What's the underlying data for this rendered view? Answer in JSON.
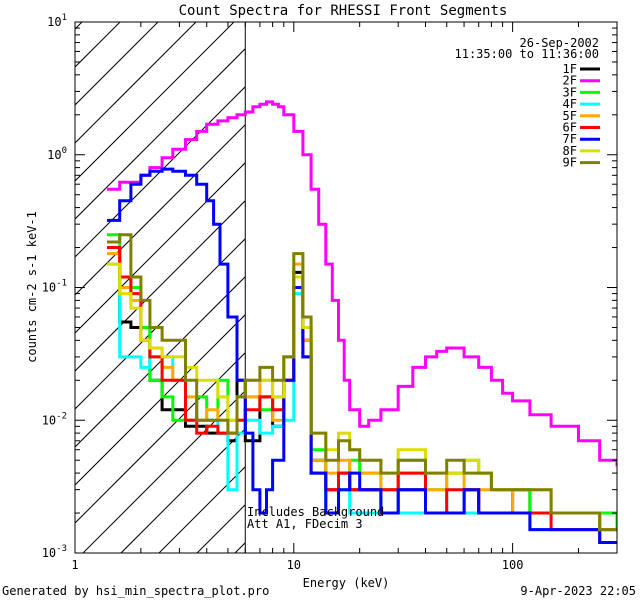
{
  "chart_data": {
    "type": "line",
    "title": "Count Spectra for RHESSI Front Segments",
    "xlabel": "Energy (keV)",
    "ylabel": "counts cm-2 s-1 keV-1",
    "x_scale": "log",
    "y_scale": "log",
    "xlim": [
      1,
      300
    ],
    "ylim": [
      0.001,
      10
    ],
    "x_tick_labels": [
      {
        "value": 1,
        "label": "1"
      },
      {
        "value": 10,
        "label": "10"
      },
      {
        "value": 100,
        "label": "100"
      }
    ],
    "y_tick_labels": [
      {
        "value": 10,
        "base": "10",
        "exp": "1"
      },
      {
        "value": 1,
        "base": "10",
        "exp": "0"
      },
      {
        "value": 0.1,
        "base": "10",
        "exp": "-1"
      },
      {
        "value": 0.01,
        "base": "10",
        "exp": "-2"
      },
      {
        "value": 0.001,
        "base": "10",
        "exp": "-3"
      }
    ],
    "date": "26-Sep-2002",
    "time_range": "11:35:00 to 11:36:00",
    "hatched_region_max_keV": 6,
    "annotations": [
      "Includes Background",
      "Att A1, FDecim 3"
    ],
    "series": [
      {
        "name": "1F",
        "color": "#000000",
        "x": [
          1.4,
          1.6,
          1.8,
          2.0,
          2.2,
          2.5,
          2.8,
          3.2,
          3.6,
          4.0,
          4.5,
          5.0,
          5.5,
          6,
          7,
          8,
          9,
          10,
          11,
          12,
          14,
          16,
          18,
          20,
          25,
          30,
          40,
          50,
          60,
          70,
          80,
          100,
          120,
          150,
          200,
          250,
          300
        ],
        "y": [
          0.2,
          0.055,
          0.05,
          0.05,
          0.02,
          0.012,
          0.012,
          0.009,
          0.009,
          0.008,
          0.008,
          0.007,
          0.02,
          0.007,
          0.015,
          0.009,
          0.02,
          0.13,
          0.04,
          0.005,
          0.003,
          0.004,
          0.003,
          0.003,
          0.002,
          0.003,
          0.002,
          0.002,
          0.003,
          0.002,
          0.002,
          0.003,
          0.002,
          0.002,
          0.002,
          0.0015,
          0.0015
        ]
      },
      {
        "name": "2F",
        "color": "#ff00ff",
        "x": [
          1.4,
          1.6,
          1.8,
          2.0,
          2.2,
          2.5,
          2.8,
          3.2,
          3.6,
          4.0,
          4.5,
          5.0,
          5.5,
          6,
          6.5,
          7,
          7.5,
          8,
          8.5,
          9,
          10,
          11,
          12,
          13,
          14,
          15,
          16,
          17,
          18,
          20,
          22,
          25,
          30,
          35,
          40,
          45,
          50,
          60,
          70,
          80,
          90,
          100,
          120,
          150,
          200,
          250,
          300
        ],
        "y": [
          0.55,
          0.62,
          0.62,
          0.7,
          0.8,
          0.95,
          1.1,
          1.3,
          1.5,
          1.7,
          1.8,
          1.9,
          2.0,
          2.1,
          2.3,
          2.4,
          2.5,
          2.4,
          2.3,
          2.0,
          1.5,
          1.0,
          0.55,
          0.3,
          0.15,
          0.08,
          0.04,
          0.02,
          0.012,
          0.009,
          0.01,
          0.012,
          0.018,
          0.025,
          0.03,
          0.033,
          0.035,
          0.03,
          0.025,
          0.02,
          0.016,
          0.014,
          0.011,
          0.009,
          0.007,
          0.005,
          0.0045
        ]
      },
      {
        "name": "3F",
        "color": "#00ff00",
        "x": [
          1.4,
          1.6,
          1.8,
          2.0,
          2.2,
          2.5,
          2.8,
          3.2,
          3.6,
          4.0,
          4.5,
          5.0,
          5.5,
          6,
          7,
          8,
          9,
          10,
          11,
          12,
          14,
          16,
          18,
          20,
          25,
          30,
          40,
          50,
          60,
          70,
          80,
          100,
          120,
          150,
          200,
          250,
          300
        ],
        "y": [
          0.25,
          0.12,
          0.1,
          0.05,
          0.02,
          0.015,
          0.01,
          0.01,
          0.015,
          0.01,
          0.02,
          0.01,
          0.015,
          0.015,
          0.012,
          0.015,
          0.03,
          0.1,
          0.05,
          0.006,
          0.002,
          0.003,
          0.005,
          0.004,
          0.003,
          0.005,
          0.003,
          0.004,
          0.005,
          0.004,
          0.003,
          0.003,
          0.002,
          0.002,
          0.002,
          0.002,
          0.0015
        ]
      },
      {
        "name": "4F",
        "color": "#00ffff",
        "x": [
          1.4,
          1.6,
          1.8,
          2.0,
          2.2,
          2.5,
          2.8,
          3.2,
          3.6,
          4.0,
          4.5,
          5.0,
          5.5,
          6,
          7,
          8,
          9,
          10,
          11,
          12,
          14,
          16,
          18,
          20,
          25,
          30,
          40,
          50,
          60,
          70,
          80,
          100,
          120,
          150,
          200,
          250,
          300
        ],
        "y": [
          0.15,
          0.03,
          0.03,
          0.025,
          0.03,
          0.03,
          0.02,
          0.015,
          0.01,
          0.01,
          0.008,
          0.003,
          0.008,
          0.01,
          0.008,
          0.009,
          0.01,
          0.09,
          0.03,
          0.004,
          0.002,
          0.003,
          0.002,
          0.002,
          0.003,
          0.002,
          0.002,
          0.003,
          0.002,
          0.002,
          0.002,
          0.002,
          0.0015,
          0.0015,
          0.0015,
          0.0012,
          0.0012
        ]
      },
      {
        "name": "5F",
        "color": "#ffaa00",
        "x": [
          1.4,
          1.6,
          1.8,
          2.0,
          2.2,
          2.5,
          2.8,
          3.2,
          3.6,
          4.0,
          4.5,
          5.0,
          5.5,
          6,
          7,
          8,
          9,
          10,
          11,
          12,
          14,
          16,
          18,
          20,
          25,
          30,
          40,
          50,
          60,
          70,
          80,
          100,
          120,
          150,
          200,
          250,
          300
        ],
        "y": [
          0.18,
          0.1,
          0.08,
          0.04,
          0.035,
          0.025,
          0.02,
          0.015,
          0.01,
          0.012,
          0.01,
          0.008,
          0.01,
          0.015,
          0.02,
          0.01,
          0.02,
          0.15,
          0.04,
          0.005,
          0.004,
          0.005,
          0.004,
          0.004,
          0.003,
          0.004,
          0.003,
          0.004,
          0.003,
          0.003,
          0.003,
          0.002,
          0.002,
          0.002,
          0.002,
          0.0015,
          0.0015
        ]
      },
      {
        "name": "6F",
        "color": "#ff0000",
        "x": [
          1.4,
          1.6,
          1.8,
          2.0,
          2.2,
          2.5,
          2.8,
          3.2,
          3.6,
          4.0,
          4.5,
          5.0,
          5.5,
          6,
          7,
          8,
          9,
          10,
          11,
          12,
          14,
          16,
          18,
          20,
          25,
          30,
          40,
          50,
          60,
          70,
          80,
          100,
          120,
          150,
          200,
          250,
          300
        ],
        "y": [
          0.2,
          0.12,
          0.09,
          0.04,
          0.03,
          0.02,
          0.02,
          0.01,
          0.008,
          0.009,
          0.008,
          0.008,
          0.01,
          0.012,
          0.015,
          0.012,
          0.02,
          0.12,
          0.03,
          0.004,
          0.003,
          0.004,
          0.003,
          0.003,
          0.003,
          0.004,
          0.002,
          0.003,
          0.003,
          0.002,
          0.002,
          0.002,
          0.002,
          0.0015,
          0.0015,
          0.0012,
          0.0012
        ]
      },
      {
        "name": "7F",
        "color": "#0000ff",
        "x": [
          1.4,
          1.6,
          1.8,
          2.0,
          2.2,
          2.5,
          2.8,
          3.2,
          3.6,
          4.0,
          4.3,
          4.6,
          5.0,
          5.5,
          6,
          6.5,
          7,
          7.5,
          8,
          9,
          10,
          11,
          12,
          14,
          16,
          18,
          20,
          25,
          30,
          40,
          50,
          60,
          70,
          80,
          100,
          120,
          150,
          200,
          250,
          300
        ],
        "y": [
          0.32,
          0.45,
          0.6,
          0.7,
          0.75,
          0.78,
          0.75,
          0.7,
          0.6,
          0.45,
          0.3,
          0.15,
          0.06,
          0.02,
          0.008,
          0.003,
          0.002,
          0.003,
          0.005,
          0.02,
          0.1,
          0.03,
          0.004,
          0.002,
          0.003,
          0.004,
          0.003,
          0.002,
          0.003,
          0.002,
          0.002,
          0.003,
          0.002,
          0.002,
          0.002,
          0.0015,
          0.0015,
          0.0015,
          0.0012,
          0.0012
        ]
      },
      {
        "name": "8F",
        "color": "#dddd00",
        "x": [
          1.4,
          1.6,
          1.8,
          2.0,
          2.2,
          2.5,
          2.8,
          3.2,
          3.6,
          4.0,
          4.5,
          5.0,
          5.5,
          6,
          7,
          8,
          9,
          10,
          11,
          12,
          14,
          16,
          18,
          20,
          25,
          30,
          40,
          50,
          60,
          70,
          80,
          100,
          120,
          150,
          200,
          250,
          300
        ],
        "y": [
          0.15,
          0.09,
          0.07,
          0.04,
          0.035,
          0.03,
          0.03,
          0.025,
          0.02,
          0.02,
          0.015,
          0.01,
          0.015,
          0.02,
          0.02,
          0.015,
          0.03,
          0.12,
          0.05,
          0.008,
          0.006,
          0.008,
          0.006,
          0.005,
          0.004,
          0.006,
          0.004,
          0.004,
          0.005,
          0.004,
          0.003,
          0.003,
          0.003,
          0.002,
          0.002,
          0.0015,
          0.0015
        ]
      },
      {
        "name": "9F",
        "color": "#808000",
        "x": [
          1.4,
          1.6,
          1.8,
          2.0,
          2.2,
          2.5,
          2.8,
          3.2,
          3.6,
          4.0,
          4.5,
          5.0,
          5.5,
          6,
          7,
          8,
          9,
          10,
          11,
          12,
          14,
          16,
          18,
          20,
          25,
          30,
          40,
          50,
          60,
          70,
          80,
          100,
          120,
          150,
          200,
          250,
          300
        ],
        "y": [
          0.22,
          0.25,
          0.12,
          0.08,
          0.05,
          0.04,
          0.04,
          0.02,
          0.01,
          0.01,
          0.01,
          0.008,
          0.015,
          0.02,
          0.025,
          0.02,
          0.03,
          0.18,
          0.06,
          0.008,
          0.005,
          0.007,
          0.006,
          0.005,
          0.004,
          0.005,
          0.004,
          0.005,
          0.004,
          0.004,
          0.003,
          0.003,
          0.003,
          0.002,
          0.002,
          0.0015,
          0.0015
        ]
      }
    ]
  },
  "footer": {
    "generated_by": "Generated by hsi_min_spectra_plot.pro",
    "timestamp": "9-Apr-2023 22:05"
  }
}
